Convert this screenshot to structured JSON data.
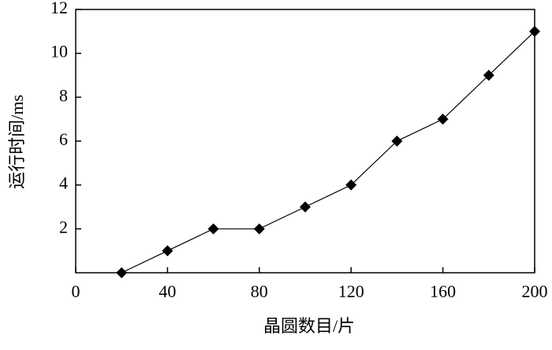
{
  "chart_data": {
    "type": "line",
    "x_label": "晶圆数目/片",
    "y_label": "运行时间/ms",
    "x": [
      20,
      40,
      60,
      80,
      100,
      120,
      140,
      160,
      180,
      200
    ],
    "series": [
      {
        "color": "#000000",
        "values": [
          0,
          1,
          2,
          2,
          3,
          4,
          6,
          7,
          9,
          11
        ]
      }
    ],
    "xlim": [
      0,
      200
    ],
    "xticks": [
      0,
      40,
      80,
      120,
      160,
      200
    ],
    "ylim": [
      0,
      12
    ],
    "yticks": [
      2,
      4,
      6,
      8,
      10,
      12
    ]
  }
}
